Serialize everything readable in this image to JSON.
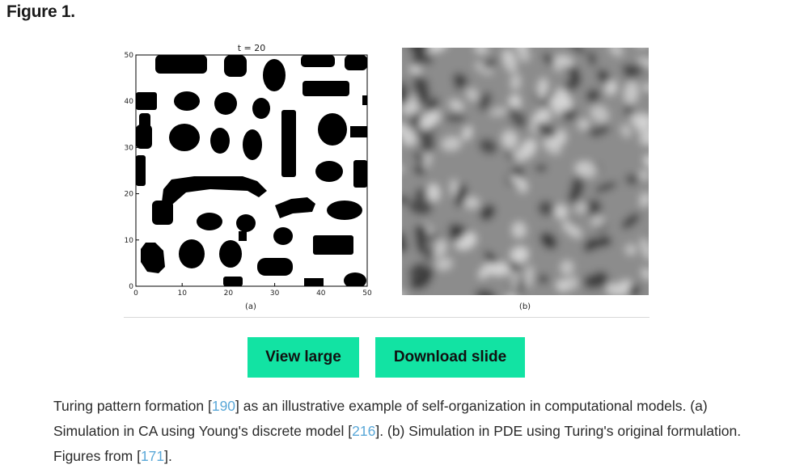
{
  "figure": {
    "title": "Figure 1.",
    "panel_a": {
      "title": "t = 20",
      "label": "(a)",
      "x_ticks": [
        "0",
        "10",
        "20",
        "30",
        "40",
        "50"
      ],
      "y_ticks": [
        "0",
        "10",
        "20",
        "30",
        "40",
        "50"
      ],
      "xlim": [
        0,
        50
      ],
      "ylim": [
        0,
        50
      ]
    },
    "panel_b": {
      "label": "(b)"
    }
  },
  "buttons": {
    "view_large": "View large",
    "download_slide": "Download slide"
  },
  "caption": {
    "p1": "Turing pattern formation [",
    "ref1": "190",
    "p2": "] as an illustrative example of self-organization in computational models. (a) Simulation in CA using Young's discrete model [",
    "ref2": "216",
    "p3": "]. (b) Simulation in PDE using Turing's original formulation. Figures from [",
    "ref3": "171",
    "p4": "]."
  },
  "colors": {
    "button_bg": "#12e3a3",
    "link": "#5aa8d8"
  }
}
